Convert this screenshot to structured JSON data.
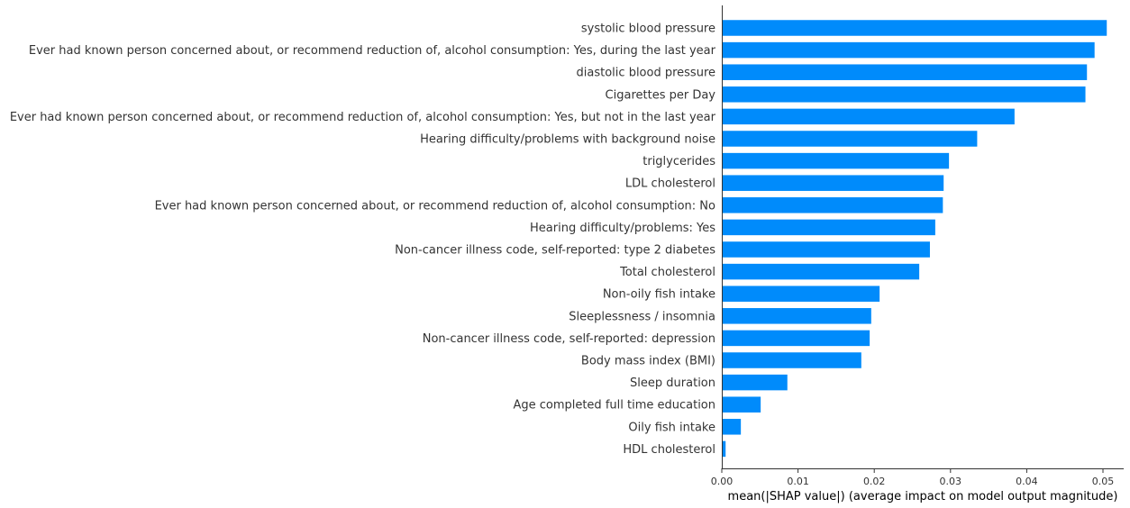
{
  "chart_data": {
    "type": "bar",
    "orientation": "horizontal",
    "xlabel": "mean(|SHAP value|) (average impact on model output magnitude)",
    "xlim": [
      0,
      0.053
    ],
    "xticks": [
      0.0,
      0.01,
      0.02,
      0.03,
      0.04,
      0.05
    ],
    "xtick_labels": [
      "0.00",
      "0.01",
      "0.02",
      "0.03",
      "0.04",
      "0.05"
    ],
    "grid": false,
    "bar_color": "#008bfb",
    "categories": [
      "systolic blood pressure",
      "Ever had known person concerned about, or recommend reduction of, alcohol consumption: Yes, during the last year",
      "diastolic blood pressure",
      "Cigarettes per Day",
      "Ever had known person concerned about, or recommend reduction of, alcohol consumption: Yes, but not in the last year",
      "Hearing difficulty/problems with background noise",
      "triglycerides",
      "LDL cholesterol",
      "Ever had known person concerned about, or recommend reduction of, alcohol consumption: No",
      "Hearing difficulty/problems: Yes",
      "Non-cancer illness code, self-reported: type 2 diabetes",
      "Total cholesterol",
      "Non-oily fish intake",
      "Sleeplessness / insomnia",
      "Non-cancer illness code, self-reported: depression",
      "Body mass index (BMI)",
      "Sleep duration",
      "Age completed full time education",
      "Oily fish intake",
      "HDL cholesterol"
    ],
    "values": [
      0.0505,
      0.0489,
      0.0479,
      0.0477,
      0.0384,
      0.0335,
      0.0298,
      0.0291,
      0.029,
      0.028,
      0.0273,
      0.0259,
      0.0207,
      0.0196,
      0.0194,
      0.0183,
      0.0086,
      0.0051,
      0.0025,
      0.0005
    ]
  }
}
